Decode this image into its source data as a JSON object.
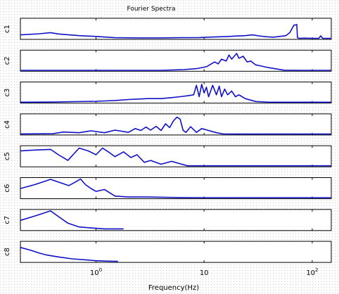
{
  "figure": {
    "title": "Fourier Spectra",
    "xlabel": "Frequency(Hz)",
    "xscale": "log",
    "xlim": [
      0.2,
      150
    ],
    "line_color": "#1010c8",
    "dot_grid_color": "#c9c9c9",
    "grid": "dotted background"
  },
  "chart_data": [
    {
      "type": "line",
      "ylabel": "c1",
      "ylim": [
        0,
        1
      ],
      "x": [
        0.2,
        0.3,
        0.38,
        0.45,
        0.7,
        1.0,
        1.5,
        2.5,
        4,
        6,
        9,
        11,
        14,
        17,
        20,
        24,
        28,
        32,
        38,
        44,
        50,
        57,
        62,
        66,
        68,
        70,
        72,
        73,
        76,
        85,
        100,
        115,
        120,
        125,
        150
      ],
      "values": [
        0.2,
        0.26,
        0.32,
        0.25,
        0.16,
        0.12,
        0.05,
        0.04,
        0.04,
        0.05,
        0.06,
        0.08,
        0.1,
        0.12,
        0.14,
        0.16,
        0.2,
        0.15,
        0.1,
        0.08,
        0.12,
        0.16,
        0.32,
        0.6,
        0.72,
        0.72,
        0.75,
        0.05,
        0.02,
        0.03,
        0.02,
        0.02,
        0.15,
        0.02,
        0.02
      ]
    },
    {
      "type": "line",
      "ylabel": "c2",
      "ylim": [
        0,
        1
      ],
      "x": [
        0.2,
        0.5,
        1.0,
        2.0,
        4.0,
        6.5,
        8.5,
        10.5,
        12.5,
        13.5,
        14.5,
        16,
        17,
        18,
        20,
        21,
        23,
        25,
        27,
        30,
        33,
        36,
        40,
        45,
        55,
        80,
        150
      ],
      "values": [
        0.01,
        0.01,
        0.01,
        0.01,
        0.01,
        0.05,
        0.1,
        0.2,
        0.45,
        0.35,
        0.6,
        0.5,
        0.82,
        0.6,
        0.9,
        0.65,
        0.75,
        0.45,
        0.5,
        0.3,
        0.25,
        0.2,
        0.15,
        0.1,
        0.02,
        0.01,
        0.01
      ]
    },
    {
      "type": "line",
      "ylabel": "c3",
      "ylim": [
        0,
        1
      ],
      "x": [
        0.2,
        0.4,
        0.6,
        1.0,
        1.5,
        2.0,
        3.0,
        4.0,
        5.0,
        6.0,
        7.0,
        8.0,
        8.5,
        9.0,
        9.5,
        10.0,
        10.5,
        11.0,
        12.0,
        13.0,
        13.8,
        14.5,
        15.5,
        16.5,
        18.0,
        19.5,
        21.0,
        24.0,
        30.0,
        40.0,
        150.0
      ],
      "values": [
        0.01,
        0.02,
        0.04,
        0.06,
        0.1,
        0.15,
        0.2,
        0.2,
        0.25,
        0.3,
        0.35,
        0.4,
        0.9,
        0.3,
        0.95,
        0.5,
        0.8,
        0.3,
        0.9,
        0.4,
        0.85,
        0.3,
        0.7,
        0.4,
        0.6,
        0.3,
        0.4,
        0.2,
        0.05,
        0.01,
        0.01
      ]
    },
    {
      "type": "line",
      "ylabel": "c4",
      "ylim": [
        0,
        1
      ],
      "x": [
        0.2,
        0.4,
        0.5,
        0.7,
        0.9,
        1.2,
        1.5,
        2.0,
        2.3,
        2.6,
        2.9,
        3.2,
        3.6,
        4.0,
        4.4,
        4.8,
        5.2,
        5.6,
        6.0,
        6.4,
        6.8,
        7.5,
        8.5,
        9.5,
        11,
        13,
        15,
        20,
        150
      ],
      "values": [
        0.02,
        0.03,
        0.12,
        0.08,
        0.18,
        0.08,
        0.22,
        0.1,
        0.3,
        0.2,
        0.38,
        0.22,
        0.42,
        0.2,
        0.55,
        0.35,
        0.7,
        0.9,
        0.8,
        0.2,
        0.1,
        0.4,
        0.1,
        0.3,
        0.2,
        0.08,
        0.02,
        0.01,
        0.01
      ]
    },
    {
      "type": "line",
      "ylabel": "c5",
      "ylim": [
        0,
        1
      ],
      "x": [
        0.2,
        0.27,
        0.38,
        0.45,
        0.55,
        0.7,
        0.85,
        1.0,
        1.15,
        1.3,
        1.5,
        1.8,
        2.1,
        2.4,
        2.8,
        3.2,
        4.0,
        5.0,
        7.0,
        10.0,
        150.0
      ],
      "values": [
        0.8,
        0.85,
        0.88,
        0.6,
        0.3,
        0.95,
        0.8,
        0.6,
        0.95,
        0.75,
        0.5,
        0.75,
        0.45,
        0.6,
        0.2,
        0.3,
        0.1,
        0.25,
        0.02,
        0.02,
        0.02
      ]
    },
    {
      "type": "line",
      "ylabel": "c6",
      "ylim": [
        0,
        1
      ],
      "x": [
        0.2,
        0.27,
        0.38,
        0.5,
        0.56,
        0.65,
        0.72,
        0.8,
        0.9,
        1.0,
        1.2,
        1.5,
        2.0,
        3.0,
        5.0,
        10.0,
        150.0
      ],
      "values": [
        0.5,
        0.7,
        0.98,
        0.75,
        0.65,
        0.85,
        1.0,
        0.7,
        0.5,
        0.35,
        0.45,
        0.1,
        0.05,
        0.05,
        0.03,
        0.02,
        0.02
      ]
    },
    {
      "type": "line",
      "ylabel": "c7",
      "ylim": [
        0,
        1
      ],
      "x": [
        0.2,
        0.28,
        0.38,
        0.45,
        0.55,
        0.7,
        0.9,
        1.2,
        1.5,
        1.8
      ],
      "values": [
        0.5,
        0.75,
        1.0,
        0.7,
        0.35,
        0.15,
        0.1,
        0.05,
        0.05,
        0.05
      ]
    },
    {
      "type": "line",
      "ylabel": "c8",
      "ylim": [
        0,
        1
      ],
      "x": [
        0.2,
        0.25,
        0.3,
        0.35,
        0.45,
        0.6,
        0.8,
        1.0,
        1.3,
        1.6
      ],
      "values": [
        0.75,
        0.6,
        0.45,
        0.35,
        0.25,
        0.15,
        0.1,
        0.05,
        0.03,
        0.02
      ]
    }
  ],
  "x_ticks": [
    {
      "value": 1,
      "label_base": "10",
      "label_exp": "0"
    },
    {
      "value": 10,
      "label_base": "10",
      "label_exp": ""
    },
    {
      "value": 100,
      "label_base": "10",
      "label_exp": "2"
    }
  ]
}
